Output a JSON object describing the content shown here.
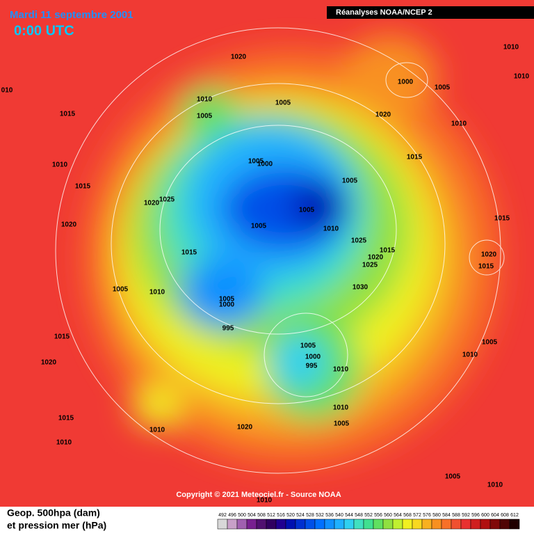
{
  "header": {
    "title": "Mardi 11 septembre 2001",
    "time": "0:00 UTC",
    "source": "Réanalyses NOAA/NCEP 2"
  },
  "map": {
    "pressure_labels": [
      "1020",
      "1010",
      "1010",
      "010",
      "1000",
      "1005",
      "1010",
      "1005",
      "1015",
      "1005",
      "1020",
      "1010",
      "1015",
      "1005",
      "1000",
      "1010",
      "1005",
      "1015",
      "1025",
      "1020",
      "1005",
      "1015",
      "1020",
      "1005",
      "1010",
      "1025",
      "1015",
      "1015",
      "1020",
      "1020",
      "1025",
      "1015",
      "1005",
      "1010",
      "1030",
      "1005",
      "1000",
      "995",
      "1015",
      "1005",
      "1005",
      "1000",
      "995",
      "1010",
      "1010",
      "1020",
      "1010",
      "1005",
      "1015",
      "1010",
      "1020",
      "1010",
      "1005",
      "1010",
      "1010"
    ],
    "copyright": "Copyright © 2021 Meteociel.fr - Source NOAA"
  },
  "legend": {
    "line1": "Geop. 500hpa (dam)",
    "line2": "et pression mer (hPa)",
    "labels": [
      "492",
      "496",
      "500",
      "504",
      "508",
      "512",
      "516",
      "520",
      "524",
      "528",
      "532",
      "536",
      "540",
      "544",
      "548",
      "552",
      "556",
      "560",
      "564",
      "568",
      "572",
      "576",
      "580",
      "584",
      "588",
      "592",
      "596",
      "600",
      "604",
      "608",
      "612"
    ],
    "colors": [
      "#d8d8d8",
      "#c8a0c8",
      "#a060b0",
      "#782090",
      "#501070",
      "#300060",
      "#200090",
      "#0010b0",
      "#0030d0",
      "#0050e8",
      "#0070ff",
      "#1090ff",
      "#20b0ff",
      "#30d0f0",
      "#40e0c0",
      "#40e090",
      "#60e060",
      "#90e040",
      "#c0f030",
      "#f0f020",
      "#f8d820",
      "#f8b020",
      "#f89020",
      "#f87028",
      "#f05030",
      "#e83030",
      "#d02020",
      "#b01010",
      "#800808",
      "#500404",
      "#200000"
    ]
  }
}
